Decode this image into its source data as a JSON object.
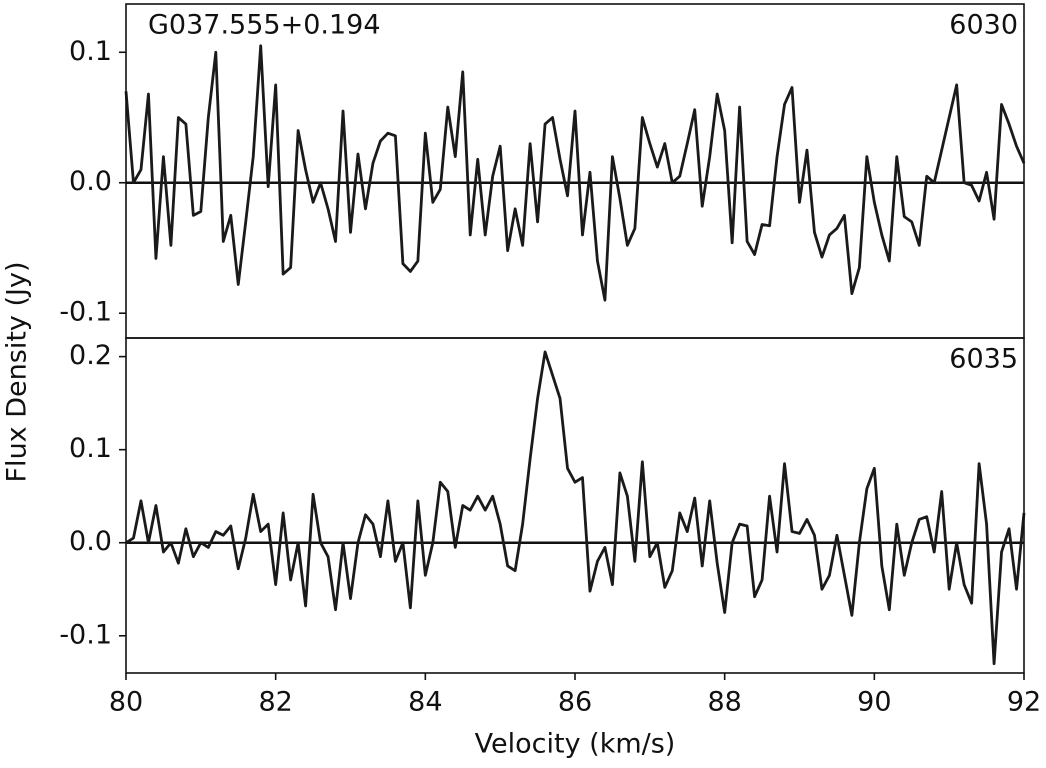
{
  "chart_data": [
    {
      "type": "line",
      "source": "G037.555+0.194",
      "label": "6030",
      "ylabel": "Flux Density (Jy)",
      "xlim": [
        80,
        92
      ],
      "ylim": [
        -0.119,
        0.137
      ],
      "yticks": [
        0.1,
        {
          "value": 0,
          "label": "0.0"
        },
        -0.1
      ],
      "zero_line": true,
      "series": [
        {
          "color": "#1a1a1a",
          "x": [
            80.0,
            80.1,
            80.2,
            80.3,
            80.4,
            80.5,
            80.6,
            80.7,
            80.8,
            80.9,
            81.0,
            81.1,
            81.2,
            81.3,
            81.4,
            81.5,
            81.6,
            81.7,
            81.8,
            81.9,
            82.0,
            82.1,
            82.2,
            82.3,
            82.4,
            82.5,
            82.6,
            82.7,
            82.8,
            82.9,
            83.0,
            83.1,
            83.2,
            83.3,
            83.4,
            83.5,
            83.6,
            83.7,
            83.8,
            83.9,
            84.0,
            84.1,
            84.2,
            84.3,
            84.4,
            84.5,
            84.6,
            84.7,
            84.8,
            84.9,
            85.0,
            85.1,
            85.2,
            85.3,
            85.4,
            85.5,
            85.6,
            85.7,
            85.8,
            85.9,
            86.0,
            86.1,
            86.2,
            86.3,
            86.4,
            86.5,
            86.6,
            86.7,
            86.8,
            86.9,
            87.0,
            87.1,
            87.2,
            87.3,
            87.4,
            87.5,
            87.6,
            87.7,
            87.8,
            87.9,
            88.0,
            88.1,
            88.2,
            88.3,
            88.4,
            88.5,
            88.6,
            88.7,
            88.8,
            88.9,
            89.0,
            89.1,
            89.2,
            89.3,
            89.4,
            89.5,
            89.6,
            89.7,
            89.8,
            89.9,
            90.0,
            90.1,
            90.2,
            90.3,
            90.4,
            90.5,
            90.6,
            90.7,
            90.8,
            90.9,
            91.0,
            91.1,
            91.2,
            91.3,
            91.4,
            91.5,
            91.6,
            91.7,
            91.8,
            91.9,
            92.0
          ],
          "values": [
            0.07,
            0.0,
            0.01,
            0.068,
            -0.058,
            0.02,
            -0.048,
            0.05,
            0.045,
            -0.025,
            -0.022,
            0.05,
            0.1,
            -0.045,
            -0.025,
            -0.078,
            -0.03,
            0.02,
            0.105,
            -0.003,
            0.075,
            -0.07,
            -0.065,
            0.04,
            0.01,
            -0.015,
            0.0,
            -0.02,
            -0.045,
            0.055,
            -0.038,
            0.022,
            -0.02,
            0.015,
            0.032,
            0.038,
            0.036,
            -0.062,
            -0.068,
            -0.06,
            0.038,
            -0.015,
            -0.005,
            0.058,
            0.02,
            0.085,
            -0.04,
            0.018,
            -0.04,
            0.005,
            0.028,
            -0.052,
            -0.02,
            -0.048,
            0.03,
            -0.03,
            0.045,
            0.05,
            0.018,
            -0.01,
            0.055,
            -0.04,
            0.008,
            -0.06,
            -0.09,
            0.02,
            -0.012,
            -0.048,
            -0.035,
            0.05,
            0.03,
            0.012,
            0.03,
            0.0,
            0.005,
            0.03,
            0.056,
            -0.018,
            0.02,
            0.068,
            0.04,
            -0.046,
            0.058,
            -0.045,
            -0.055,
            -0.032,
            -0.033,
            0.02,
            0.06,
            0.073,
            -0.015,
            0.025,
            -0.038,
            -0.057,
            -0.04,
            -0.035,
            -0.025,
            -0.085,
            -0.065,
            0.02,
            -0.015,
            -0.04,
            -0.06,
            0.02,
            -0.026,
            -0.03,
            -0.048,
            0.005,
            0.0,
            0.025,
            0.05,
            0.075,
            0.0,
            -0.002,
            -0.014,
            0.008,
            -0.028,
            0.06,
            0.045,
            0.028,
            0.015
          ]
        }
      ]
    },
    {
      "type": "line",
      "label": "6035",
      "xlabel": "Velocity (km/s)",
      "xlim": [
        80,
        92
      ],
      "ylim": [
        -0.14,
        0.22
      ],
      "xticks": [
        80,
        82,
        84,
        86,
        88,
        90,
        92
      ],
      "yticks": [
        0.2,
        0.1,
        {
          "value": 0,
          "label": "0.0"
        },
        -0.1
      ],
      "zero_line": true,
      "series": [
        {
          "color": "#1a1a1a",
          "x": [
            80.0,
            80.1,
            80.2,
            80.3,
            80.4,
            80.5,
            80.6,
            80.7,
            80.8,
            80.9,
            81.0,
            81.1,
            81.2,
            81.3,
            81.4,
            81.5,
            81.6,
            81.7,
            81.8,
            81.9,
            82.0,
            82.1,
            82.2,
            82.3,
            82.4,
            82.5,
            82.6,
            82.7,
            82.8,
            82.9,
            83.0,
            83.1,
            83.2,
            83.3,
            83.4,
            83.5,
            83.6,
            83.7,
            83.8,
            83.9,
            84.0,
            84.1,
            84.2,
            84.3,
            84.4,
            84.5,
            84.6,
            84.7,
            84.8,
            84.9,
            85.0,
            85.1,
            85.2,
            85.3,
            85.4,
            85.5,
            85.6,
            85.7,
            85.8,
            85.9,
            86.0,
            86.1,
            86.2,
            86.3,
            86.4,
            86.5,
            86.6,
            86.7,
            86.8,
            86.9,
            87.0,
            87.1,
            87.2,
            87.3,
            87.4,
            87.5,
            87.6,
            87.7,
            87.8,
            87.9,
            88.0,
            88.1,
            88.2,
            88.3,
            88.4,
            88.5,
            88.6,
            88.7,
            88.8,
            88.9,
            89.0,
            89.1,
            89.2,
            89.3,
            89.4,
            89.5,
            89.6,
            89.7,
            89.8,
            89.9,
            90.0,
            90.1,
            90.2,
            90.3,
            90.4,
            90.5,
            90.6,
            90.7,
            90.8,
            90.9,
            91.0,
            91.1,
            91.2,
            91.3,
            91.4,
            91.5,
            91.6,
            91.7,
            91.8,
            91.9,
            92.0
          ],
          "values": [
            0.0,
            0.005,
            0.045,
            0.0,
            0.04,
            -0.01,
            0.0,
            -0.022,
            0.015,
            -0.015,
            0.0,
            -0.005,
            0.012,
            0.008,
            0.018,
            -0.028,
            0.005,
            0.052,
            0.012,
            0.02,
            -0.045,
            0.032,
            -0.04,
            0.0,
            -0.068,
            0.052,
            0.0,
            -0.015,
            -0.072,
            0.0,
            -0.06,
            0.0,
            0.03,
            0.02,
            -0.015,
            0.045,
            -0.02,
            0.0,
            -0.07,
            0.045,
            -0.035,
            0.0,
            0.065,
            0.055,
            -0.005,
            0.04,
            0.035,
            0.05,
            0.035,
            0.05,
            0.02,
            -0.025,
            -0.03,
            0.02,
            0.09,
            0.155,
            0.205,
            0.18,
            0.155,
            0.08,
            0.065,
            0.07,
            -0.052,
            -0.02,
            -0.005,
            -0.045,
            0.075,
            0.05,
            -0.02,
            0.087,
            -0.015,
            0.0,
            -0.048,
            -0.03,
            0.032,
            0.012,
            0.048,
            -0.025,
            0.045,
            -0.022,
            -0.075,
            0.0,
            0.02,
            0.018,
            -0.058,
            -0.04,
            0.05,
            -0.01,
            0.085,
            0.012,
            0.01,
            0.025,
            0.008,
            -0.05,
            -0.035,
            0.008,
            -0.035,
            -0.078,
            0.0,
            0.058,
            0.08,
            -0.025,
            -0.072,
            0.02,
            -0.035,
            0.0,
            0.025,
            0.028,
            -0.01,
            0.055,
            -0.05,
            0.0,
            -0.045,
            -0.065,
            0.085,
            0.02,
            -0.13,
            -0.01,
            0.015,
            -0.05,
            0.032
          ]
        }
      ]
    }
  ]
}
